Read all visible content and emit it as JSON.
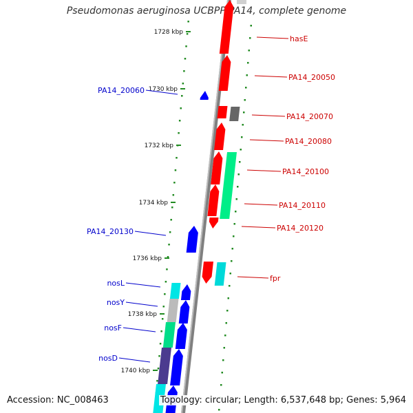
{
  "title": "Pseudomonas aeruginosa UCBPP-PA14, complete genome",
  "footer": {
    "accession": "Accession: NC_008463",
    "summary": "Topology: circular; Length: 6,537,648 bp; Genes: 5,964"
  },
  "colors": {
    "forward_strand": "#ff0000",
    "reverse_strand": "#0000ff",
    "backbone": "#808080",
    "tick": "#228b22",
    "label_right": "#cc0000",
    "label_left": "#0000cc"
  },
  "kbp_ticks": [
    "1728 kbp",
    "1730 kbp",
    "1732 kbp",
    "1734 kbp",
    "1736 kbp",
    "1738 kbp",
    "1740 kbp"
  ],
  "genes_right": [
    "hasE",
    "PA14_20050",
    "PA14_20070",
    "PA14_20080",
    "PA14_20100",
    "PA14_20110",
    "PA14_20120",
    "fpr"
  ],
  "genes_left": [
    "PA14_20060",
    "PA14_20130",
    "nosL",
    "nosY",
    "nosF",
    "nosD"
  ]
}
